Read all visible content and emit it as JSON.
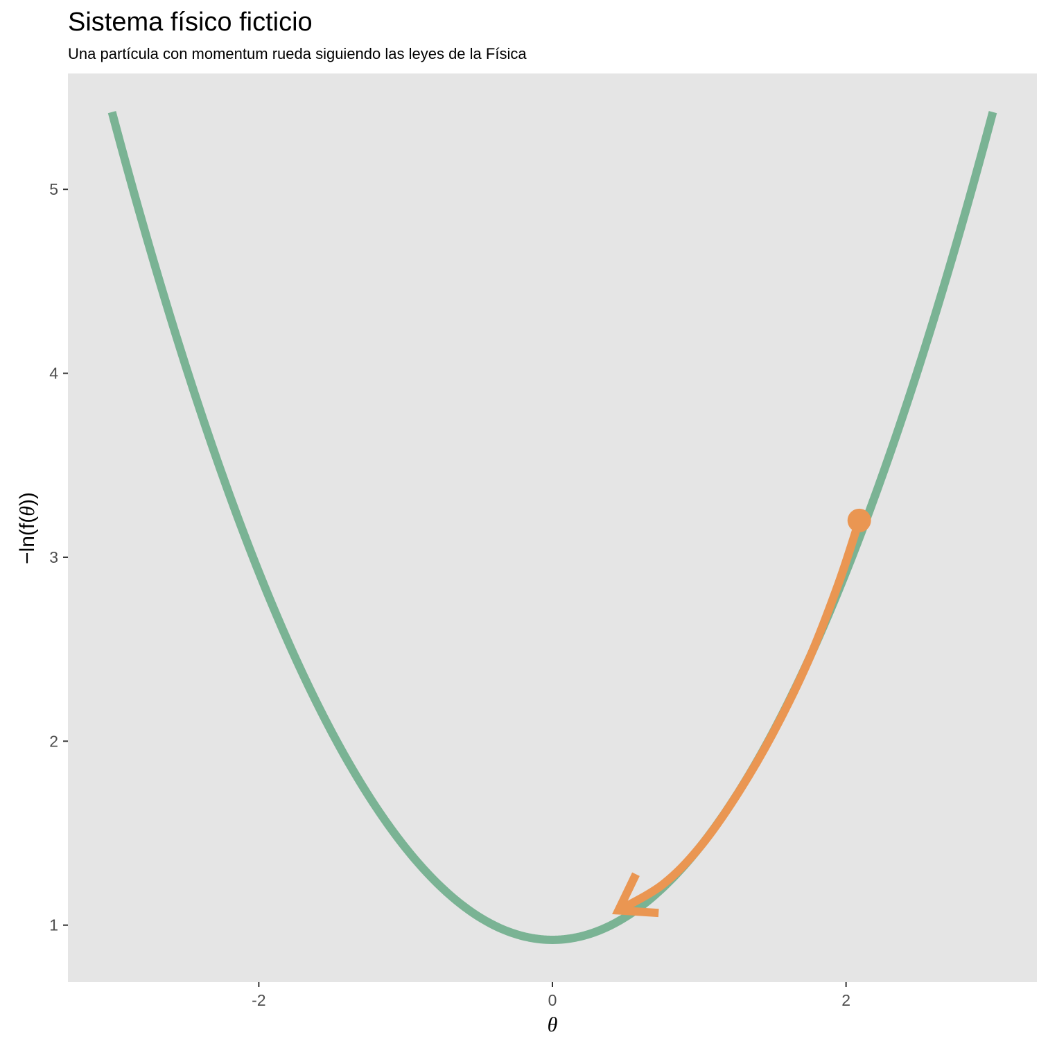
{
  "chart_data": {
    "type": "line",
    "title": "Sistema físico ficticio",
    "subtitle": "Una partícula con momentum rueda siguiendo las leyes de la Física",
    "xlabel": "θ",
    "ylabel": "−ln(f(θ))",
    "ylabel_parts": {
      "prefix": "−ln(f(",
      "symbol": "θ",
      "suffix": "))"
    },
    "xlim": [
      -3.3,
      3.3
    ],
    "ylim": [
      0.69,
      5.63
    ],
    "x_ticks": [
      -2,
      0,
      2
    ],
    "x_tick_labels": [
      "-2",
      "0",
      "2"
    ],
    "y_ticks": [
      1,
      2,
      3,
      4,
      5
    ],
    "y_tick_labels": [
      "1",
      "2",
      "3",
      "4",
      "5"
    ],
    "grid": false,
    "background": "#e5e5e5",
    "curve": {
      "function": "0.5*theta^2 + 0.92",
      "x_range": [
        -3,
        3
      ],
      "color": "#7ab394"
    },
    "particle": {
      "x": 2.09,
      "y": 3.2,
      "color": "#ea9652"
    },
    "trajectory": {
      "color": "#ea9652",
      "points": [
        [
          2.09,
          3.2
        ],
        [
          1.95,
          2.86
        ],
        [
          1.75,
          2.45
        ],
        [
          1.5,
          2.04
        ],
        [
          1.25,
          1.7
        ],
        [
          1.0,
          1.42
        ],
        [
          0.75,
          1.22
        ],
        [
          0.45,
          1.08
        ]
      ]
    }
  }
}
